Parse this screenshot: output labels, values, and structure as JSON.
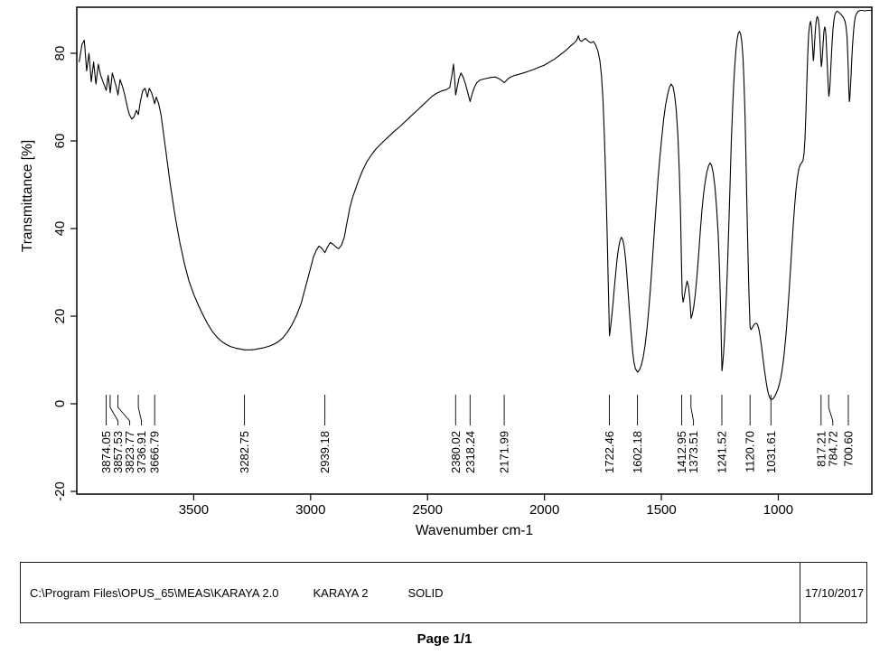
{
  "chart_data": {
    "type": "line",
    "title": "",
    "xlabel": "Wavenumber cm-1",
    "ylabel": "Transmittance [%]",
    "x_range": [
      4000,
      600
    ],
    "y_range": [
      -20.6,
      90.5
    ],
    "x_ticks": [
      3500,
      3000,
      2500,
      2000,
      1500,
      1000
    ],
    "y_ticks": [
      80,
      60,
      40,
      20,
      0,
      -20
    ],
    "grid": false,
    "line_color": "#000000",
    "peak_labels": [
      "3874.05",
      "3857.53",
      "3823.77",
      "3736.91",
      "3666.79",
      "3282.75",
      "2939.18",
      "2380.02",
      "2318.24",
      "2171.99",
      "1722.46",
      "1602.18",
      "1412.95",
      "1373.51",
      "1241.52",
      "1120.70",
      "1031.61",
      "817.21",
      "784.72",
      "700.60"
    ],
    "points": [
      [
        3990,
        78
      ],
      [
        3978,
        82
      ],
      [
        3968,
        83
      ],
      [
        3958,
        76
      ],
      [
        3948,
        80
      ],
      [
        3938,
        73.5
      ],
      [
        3928,
        78
      ],
      [
        3918,
        73
      ],
      [
        3908,
        77.5
      ],
      [
        3898,
        75
      ],
      [
        3888,
        73.5
      ],
      [
        3874,
        71.5
      ],
      [
        3866,
        75
      ],
      [
        3857,
        71
      ],
      [
        3848,
        75.5
      ],
      [
        3840,
        74
      ],
      [
        3832,
        72.5
      ],
      [
        3824,
        70.5
      ],
      [
        3815,
        74
      ],
      [
        3805,
        72.5
      ],
      [
        3795,
        70.5
      ],
      [
        3785,
        68
      ],
      [
        3775,
        66
      ],
      [
        3765,
        65
      ],
      [
        3755,
        65.5
      ],
      [
        3745,
        67
      ],
      [
        3737,
        66
      ],
      [
        3728,
        69
      ],
      [
        3718,
        71.5
      ],
      [
        3708,
        72
      ],
      [
        3698,
        70
      ],
      [
        3690,
        72
      ],
      [
        3680,
        71
      ],
      [
        3672,
        69.5
      ],
      [
        3667,
        68.5
      ],
      [
        3660,
        70
      ],
      [
        3650,
        68.5
      ],
      [
        3640,
        66
      ],
      [
        3630,
        62
      ],
      [
        3620,
        58
      ],
      [
        3610,
        54
      ],
      [
        3600,
        50
      ],
      [
        3580,
        43
      ],
      [
        3560,
        37
      ],
      [
        3540,
        32
      ],
      [
        3520,
        28
      ],
      [
        3500,
        25
      ],
      [
        3480,
        22.5
      ],
      [
        3460,
        20.2
      ],
      [
        3440,
        18.2
      ],
      [
        3420,
        16.5
      ],
      [
        3400,
        15.2
      ],
      [
        3380,
        14.2
      ],
      [
        3360,
        13.5
      ],
      [
        3340,
        13
      ],
      [
        3320,
        12.7
      ],
      [
        3300,
        12.5
      ],
      [
        3283,
        12.3
      ],
      [
        3260,
        12.3
      ],
      [
        3240,
        12.4
      ],
      [
        3220,
        12.6
      ],
      [
        3200,
        12.8
      ],
      [
        3180,
        13.1
      ],
      [
        3160,
        13.5
      ],
      [
        3140,
        14.1
      ],
      [
        3120,
        15
      ],
      [
        3100,
        16.3
      ],
      [
        3080,
        18
      ],
      [
        3060,
        20.2
      ],
      [
        3040,
        23
      ],
      [
        3020,
        27
      ],
      [
        3000,
        31
      ],
      [
        2988,
        33.5
      ],
      [
        2976,
        35
      ],
      [
        2964,
        36
      ],
      [
        2952,
        35.5
      ],
      [
        2939,
        34.5
      ],
      [
        2928,
        35.8
      ],
      [
        2916,
        36.8
      ],
      [
        2904,
        36.4
      ],
      [
        2892,
        35.8
      ],
      [
        2880,
        35.4
      ],
      [
        2868,
        36.2
      ],
      [
        2856,
        38
      ],
      [
        2844,
        41.5
      ],
      [
        2832,
        44.8
      ],
      [
        2820,
        47.2
      ],
      [
        2808,
        49
      ],
      [
        2796,
        50.8
      ],
      [
        2780,
        53
      ],
      [
        2760,
        55.2
      ],
      [
        2740,
        56.8
      ],
      [
        2720,
        58.2
      ],
      [
        2700,
        59.3
      ],
      [
        2680,
        60.3
      ],
      [
        2660,
        61.3
      ],
      [
        2640,
        62.3
      ],
      [
        2620,
        63.2
      ],
      [
        2600,
        64.2
      ],
      [
        2580,
        65.2
      ],
      [
        2560,
        66.2
      ],
      [
        2540,
        67.2
      ],
      [
        2520,
        68.2
      ],
      [
        2500,
        69.2
      ],
      [
        2480,
        70.2
      ],
      [
        2460,
        70.9
      ],
      [
        2440,
        71.4
      ],
      [
        2420,
        71.7
      ],
      [
        2405,
        72.2
      ],
      [
        2396,
        75
      ],
      [
        2389,
        77.5
      ],
      [
        2383,
        73.5
      ],
      [
        2380,
        70.5
      ],
      [
        2374,
        72
      ],
      [
        2366,
        74.2
      ],
      [
        2357,
        75.5
      ],
      [
        2348,
        74.6
      ],
      [
        2338,
        73
      ],
      [
        2328,
        71
      ],
      [
        2318,
        69
      ],
      [
        2309,
        70.8
      ],
      [
        2300,
        72.2
      ],
      [
        2289,
        73.3
      ],
      [
        2276,
        73.9
      ],
      [
        2262,
        74.1
      ],
      [
        2245,
        74.3
      ],
      [
        2228,
        74.5
      ],
      [
        2210,
        74.6
      ],
      [
        2195,
        74.2
      ],
      [
        2183,
        73.8
      ],
      [
        2172,
        73.3
      ],
      [
        2161,
        73.9
      ],
      [
        2148,
        74.5
      ],
      [
        2130,
        74.9
      ],
      [
        2110,
        75.2
      ],
      [
        2090,
        75.5
      ],
      [
        2068,
        75.9
      ],
      [
        2046,
        76.3
      ],
      [
        2024,
        76.8
      ],
      [
        2000,
        77.3
      ],
      [
        1978,
        78
      ],
      [
        1956,
        78.7
      ],
      [
        1934,
        79.6
      ],
      [
        1912,
        80.5
      ],
      [
        1898,
        81.2
      ],
      [
        1886,
        81.8
      ],
      [
        1874,
        82.3
      ],
      [
        1862,
        83
      ],
      [
        1855,
        84
      ],
      [
        1849,
        83
      ],
      [
        1841,
        82.7
      ],
      [
        1833,
        83.1
      ],
      [
        1825,
        83.4
      ],
      [
        1817,
        83
      ],
      [
        1809,
        82.6
      ],
      [
        1800,
        82.4
      ],
      [
        1791,
        82.7
      ],
      [
        1782,
        82
      ],
      [
        1772,
        80.6
      ],
      [
        1763,
        78.3
      ],
      [
        1756,
        74.8
      ],
      [
        1750,
        69.5
      ],
      [
        1744,
        61.5
      ],
      [
        1738,
        51
      ],
      [
        1732,
        39
      ],
      [
        1727,
        27
      ],
      [
        1722,
        15.5
      ],
      [
        1718,
        17
      ],
      [
        1713,
        19.5
      ],
      [
        1707,
        22.8
      ],
      [
        1701,
        26.5
      ],
      [
        1695,
        30
      ],
      [
        1689,
        33.2
      ],
      [
        1683,
        35.6
      ],
      [
        1677,
        37.2
      ],
      [
        1671,
        38
      ],
      [
        1665,
        37.4
      ],
      [
        1659,
        35.8
      ],
      [
        1653,
        33
      ],
      [
        1647,
        29
      ],
      [
        1641,
        24.5
      ],
      [
        1635,
        20
      ],
      [
        1629,
        15.8
      ],
      [
        1623,
        12
      ],
      [
        1617,
        9.4
      ],
      [
        1611,
        8
      ],
      [
        1602,
        7.2
      ],
      [
        1594,
        7.7
      ],
      [
        1586,
        8.8
      ],
      [
        1578,
        10.6
      ],
      [
        1570,
        13.2
      ],
      [
        1562,
        16.8
      ],
      [
        1554,
        21.5
      ],
      [
        1546,
        27
      ],
      [
        1538,
        33
      ],
      [
        1530,
        39.5
      ],
      [
        1522,
        45.8
      ],
      [
        1514,
        51.5
      ],
      [
        1506,
        56.5
      ],
      [
        1498,
        61
      ],
      [
        1490,
        65
      ],
      [
        1482,
        68.2
      ],
      [
        1474,
        70.5
      ],
      [
        1466,
        72.2
      ],
      [
        1458,
        73
      ],
      [
        1450,
        72.3
      ],
      [
        1443,
        70.3
      ],
      [
        1436,
        66.8
      ],
      [
        1429,
        61
      ],
      [
        1423,
        52.5
      ],
      [
        1418,
        43
      ],
      [
        1414,
        32
      ],
      [
        1411,
        25
      ],
      [
        1407,
        23.2
      ],
      [
        1402,
        24.5
      ],
      [
        1396,
        26.5
      ],
      [
        1390,
        28
      ],
      [
        1384,
        26.8
      ],
      [
        1378,
        23.8
      ],
      [
        1373,
        19.5
      ],
      [
        1368,
        20.3
      ],
      [
        1362,
        22
      ],
      [
        1355,
        25
      ],
      [
        1348,
        29
      ],
      [
        1341,
        33.8
      ],
      [
        1334,
        39
      ],
      [
        1327,
        43.8
      ],
      [
        1320,
        47.6
      ],
      [
        1313,
        50.6
      ],
      [
        1306,
        52.8
      ],
      [
        1299,
        54.2
      ],
      [
        1292,
        55
      ],
      [
        1285,
        54.4
      ],
      [
        1278,
        52.6
      ],
      [
        1271,
        49.6
      ],
      [
        1264,
        45
      ],
      [
        1257,
        38.5
      ],
      [
        1251,
        30
      ],
      [
        1246,
        20.5
      ],
      [
        1243,
        12
      ],
      [
        1241,
        7.5
      ],
      [
        1238,
        9
      ],
      [
        1234,
        11.5
      ],
      [
        1230,
        15
      ],
      [
        1226,
        19.8
      ],
      [
        1221,
        26
      ],
      [
        1216,
        33.5
      ],
      [
        1211,
        42
      ],
      [
        1206,
        51
      ],
      [
        1201,
        59.5
      ],
      [
        1196,
        66.5
      ],
      [
        1191,
        72.5
      ],
      [
        1186,
        77.2
      ],
      [
        1181,
        80.8
      ],
      [
        1176,
        83.2
      ],
      [
        1171,
        84.6
      ],
      [
        1166,
        85
      ],
      [
        1161,
        84.4
      ],
      [
        1156,
        82.6
      ],
      [
        1151,
        79
      ],
      [
        1147,
        74
      ],
      [
        1143,
        67
      ],
      [
        1139,
        58
      ],
      [
        1135,
        47.5
      ],
      [
        1131,
        37
      ],
      [
        1127,
        28
      ],
      [
        1124,
        22.5
      ],
      [
        1121,
        17.5
      ],
      [
        1117,
        16.9
      ],
      [
        1112,
        17.3
      ],
      [
        1107,
        17.8
      ],
      [
        1101,
        18.2
      ],
      [
        1095,
        18.4
      ],
      [
        1089,
        18.1
      ],
      [
        1083,
        17
      ],
      [
        1077,
        15.2
      ],
      [
        1071,
        12.8
      ],
      [
        1065,
        10.2
      ],
      [
        1059,
        7.6
      ],
      [
        1053,
        5.3
      ],
      [
        1047,
        3.4
      ],
      [
        1042,
        2.2
      ],
      [
        1037,
        1.4
      ],
      [
        1032,
        1
      ],
      [
        1026,
        1
      ],
      [
        1020,
        1.3
      ],
      [
        1014,
        1.8
      ],
      [
        1008,
        2.5
      ],
      [
        1002,
        3.3
      ],
      [
        996,
        4.4
      ],
      [
        990,
        5.8
      ],
      [
        984,
        7.6
      ],
      [
        978,
        10
      ],
      [
        972,
        13
      ],
      [
        966,
        16.6
      ],
      [
        960,
        20.8
      ],
      [
        954,
        25.5
      ],
      [
        948,
        30.5
      ],
      [
        942,
        35.8
      ],
      [
        936,
        40.8
      ],
      [
        930,
        45.3
      ],
      [
        924,
        49
      ],
      [
        918,
        51.8
      ],
      [
        912,
        53.6
      ],
      [
        906,
        54.6
      ],
      [
        900,
        55
      ],
      [
        894,
        55.6
      ],
      [
        890,
        57
      ],
      [
        886,
        60.5
      ],
      [
        882,
        66
      ],
      [
        878,
        73
      ],
      [
        874,
        80
      ],
      [
        870,
        84.5
      ],
      [
        866,
        86.5
      ],
      [
        862,
        87.3
      ],
      [
        858,
        86
      ],
      [
        855,
        83
      ],
      [
        852,
        79.8
      ],
      [
        850,
        78.3
      ],
      [
        848,
        79.3
      ],
      [
        845,
        82.3
      ],
      [
        842,
        85
      ],
      [
        839,
        86.8
      ],
      [
        836,
        88
      ],
      [
        833,
        88.4
      ],
      [
        829,
        87.8
      ],
      [
        825,
        85.8
      ],
      [
        821,
        82
      ],
      [
        818,
        78.6
      ],
      [
        816,
        77
      ],
      [
        814,
        77.6
      ],
      [
        811,
        79.8
      ],
      [
        808,
        82.6
      ],
      [
        805,
        84.8
      ],
      [
        802,
        86
      ],
      [
        799,
        85.7
      ],
      [
        796,
        83.8
      ],
      [
        793,
        80.5
      ],
      [
        790,
        76.8
      ],
      [
        787,
        73
      ],
      [
        784,
        70.2
      ],
      [
        782,
        70.8
      ],
      [
        779,
        72.8
      ],
      [
        776,
        75.8
      ],
      [
        773,
        79.2
      ],
      [
        770,
        82.4
      ],
      [
        766,
        85.6
      ],
      [
        762,
        87.6
      ],
      [
        758,
        88.8
      ],
      [
        753,
        89.4
      ],
      [
        748,
        89.6
      ],
      [
        742,
        89.4
      ],
      [
        736,
        89.1
      ],
      [
        729,
        88.7
      ],
      [
        722,
        88.2
      ],
      [
        715,
        87.4
      ],
      [
        710,
        86
      ],
      [
        706,
        83.6
      ],
      [
        703,
        80
      ],
      [
        701,
        76.5
      ],
      [
        699,
        72.5
      ],
      [
        697,
        69.8
      ],
      [
        696,
        69
      ],
      [
        694,
        69.8
      ],
      [
        692,
        71.8
      ],
      [
        689,
        74.8
      ],
      [
        686,
        78.2
      ],
      [
        683,
        81.4
      ],
      [
        679,
        84.6
      ],
      [
        675,
        86.9
      ],
      [
        670,
        88.5
      ],
      [
        664,
        89.2
      ],
      [
        657,
        89.6
      ],
      [
        649,
        89.8
      ],
      [
        640,
        89.8
      ],
      [
        630,
        89.7
      ],
      [
        618,
        89.8
      ],
      [
        605,
        89.8
      ],
      [
        600,
        89.8
      ]
    ]
  },
  "footer": {
    "file_path": "C:\\Program Files\\OPUS_65\\MEAS\\KARAYA 2.0",
    "sample_name": "KARAYA 2",
    "sample_form": "SOLID",
    "date": "17/10/2017",
    "page": "Page 1/1"
  }
}
